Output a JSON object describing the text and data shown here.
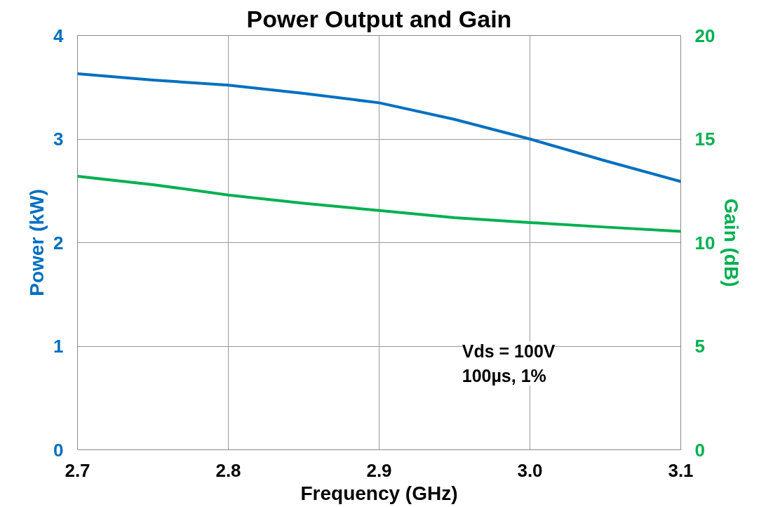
{
  "chart_data": {
    "type": "line",
    "title": "Power Output and Gain",
    "xlabel": "Frequency (GHz)",
    "ylabel": "Power (kW)",
    "y2label": "Gain (dB)",
    "x": [
      2.7,
      2.75,
      2.8,
      2.85,
      2.9,
      2.95,
      3.0,
      3.05,
      3.1
    ],
    "series": [
      {
        "color": "#0070c0",
        "values": [
          3.63,
          3.57,
          3.52,
          3.44,
          3.35,
          3.19,
          3.0,
          2.79,
          2.59
        ]
      },
      {
        "color": "#00b050",
        "axis": "y2",
        "values": [
          13.2,
          12.8,
          12.3,
          11.9,
          11.55,
          11.2,
          10.97,
          10.75,
          10.54
        ]
      }
    ],
    "xlim": [
      2.7,
      3.1
    ],
    "xticks": [
      {
        "value": 2.7,
        "label": "2.7"
      },
      {
        "value": 2.8,
        "label": "2.8"
      },
      {
        "value": 2.9,
        "label": "2.9"
      },
      {
        "value": 3.0,
        "label": "3.0"
      },
      {
        "value": 3.1,
        "label": "3.1"
      }
    ],
    "ylim": [
      0,
      4
    ],
    "yticks": [
      0,
      1,
      2,
      3,
      4
    ],
    "y2lim": [
      0,
      20
    ],
    "y2ticks": [
      0,
      5,
      10,
      15,
      20
    ],
    "grid": true,
    "line_style": "solid",
    "annotations": [
      "Vds = 100V\n100µs, 1%"
    ]
  }
}
